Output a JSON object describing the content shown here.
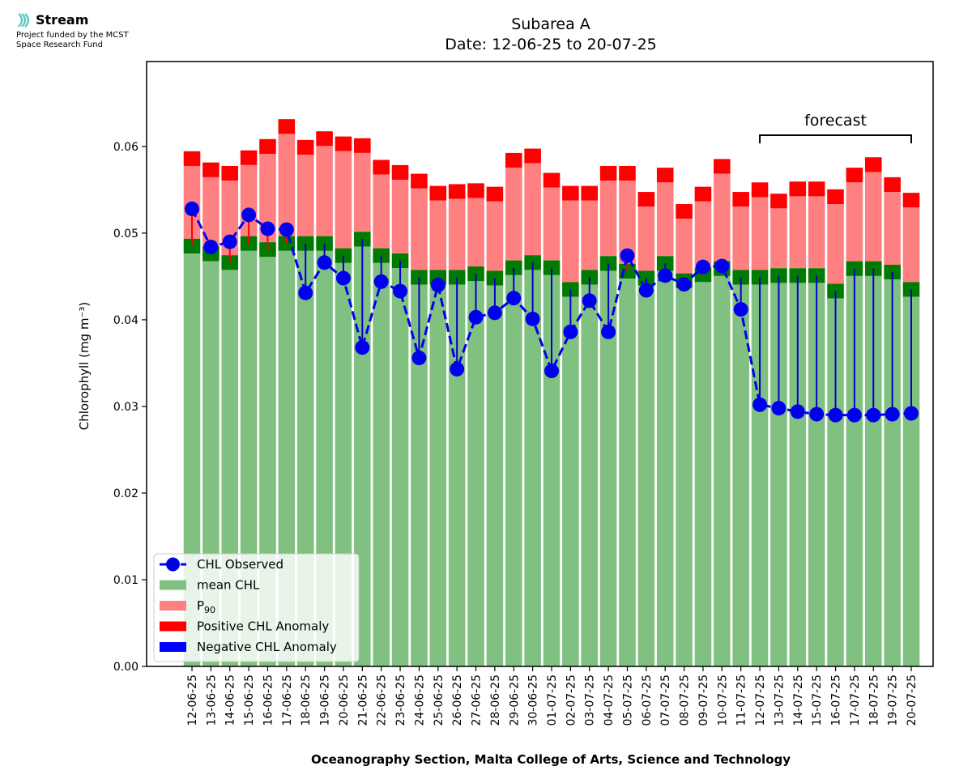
{
  "logo": {
    "name": "Stream",
    "funding_line1": "Project funded by the MCST",
    "funding_line2": "Space Research Fund"
  },
  "chart_data": {
    "type": "bar",
    "title": "Subarea A",
    "subtitle": "Date: 12-06-25 to 20-07-25",
    "xlabel": "Oceanography Section, Malta College of Arts, Science and Technology",
    "ylabel": "Chlorophyll (mg m⁻³)",
    "ylim": [
      0,
      0.0698
    ],
    "yticks": [
      "0.00",
      "0.01",
      "0.02",
      "0.03",
      "0.04",
      "0.05",
      "0.06"
    ],
    "annotation": "forecast",
    "forecast_range": [
      "12-07-25",
      "20-07-25"
    ],
    "legend_placement": "lower-left",
    "categories": [
      "12-06-25",
      "13-06-25",
      "14-06-25",
      "15-06-25",
      "16-06-25",
      "17-06-25",
      "18-06-25",
      "19-06-25",
      "20-06-25",
      "21-06-25",
      "22-06-25",
      "23-06-25",
      "24-06-25",
      "25-06-25",
      "26-06-25",
      "27-06-25",
      "28-06-25",
      "29-06-25",
      "30-06-25",
      "01-07-25",
      "02-07-25",
      "03-07-25",
      "04-07-25",
      "05-07-25",
      "06-07-25",
      "07-07-25",
      "08-07-25",
      "09-07-25",
      "10-07-25",
      "11-07-25",
      "12-07-25",
      "13-07-25",
      "14-07-25",
      "15-07-25",
      "16-07-25",
      "17-07-25",
      "18-07-25",
      "19-07-25",
      "20-07-25"
    ],
    "series": [
      {
        "name": "mean CHL",
        "color": "#80c080",
        "values": [
          0.0485,
          0.0476,
          0.0466,
          0.0488,
          0.0481,
          0.0488,
          0.0488,
          0.0488,
          0.0474,
          0.0493,
          0.0474,
          0.0468,
          0.0449,
          0.0449,
          0.0449,
          0.0453,
          0.0448,
          0.046,
          0.0466,
          0.046,
          0.0435,
          0.0449,
          0.0465,
          0.0456,
          0.0448,
          0.0465,
          0.0445,
          0.0452,
          0.0459,
          0.0449,
          0.0449,
          0.0451,
          0.0451,
          0.0451,
          0.0433,
          0.0459,
          0.0459,
          0.0455,
          0.0435
        ]
      },
      {
        "name": "P90",
        "color": "#ff8080",
        "values": [
          0.0586,
          0.0573,
          0.0569,
          0.0587,
          0.06,
          0.0623,
          0.0599,
          0.0609,
          0.0603,
          0.0601,
          0.0576,
          0.057,
          0.056,
          0.0546,
          0.0548,
          0.0549,
          0.0545,
          0.0584,
          0.0589,
          0.0561,
          0.0546,
          0.0546,
          0.0569,
          0.0569,
          0.0539,
          0.0567,
          0.0525,
          0.0545,
          0.0577,
          0.0539,
          0.055,
          0.0537,
          0.0551,
          0.0551,
          0.0542,
          0.0567,
          0.0579,
          0.0556,
          0.0538
        ]
      },
      {
        "name": "CHL Observed",
        "color": "#0000ee",
        "values": [
          0.0528,
          0.0484,
          0.049,
          0.0521,
          0.0505,
          0.0504,
          0.0431,
          0.0466,
          0.0448,
          0.0368,
          0.0444,
          0.0433,
          0.0356,
          0.044,
          0.0343,
          0.0403,
          0.0408,
          0.0425,
          0.0401,
          0.0341,
          0.0386,
          0.0422,
          0.0386,
          0.0474,
          0.0434,
          0.0451,
          0.0441,
          0.0461,
          0.0462,
          0.0412,
          0.0302,
          0.0298,
          0.0294,
          0.0291,
          0.029,
          0.029,
          0.029,
          0.0291,
          0.0292
        ]
      }
    ],
    "legend": [
      {
        "label": "CHL Observed",
        "kind": "line-marker",
        "color": "#0000ee"
      },
      {
        "label": "mean CHL",
        "kind": "patch",
        "color": "#80c080"
      },
      {
        "label": "P",
        "sub": "90",
        "kind": "patch",
        "color": "#ff8080"
      },
      {
        "label": "Positive CHL Anomaly",
        "kind": "patch",
        "color": "#ff0000"
      },
      {
        "label": "Negative CHL Anomaly",
        "kind": "patch",
        "color": "#0000ff"
      }
    ],
    "colors": {
      "mean_cap": "#007a00",
      "p90_cap": "#ff0000",
      "positive_anomaly": "#ff0000",
      "negative_anomaly": "#0000cc"
    }
  }
}
